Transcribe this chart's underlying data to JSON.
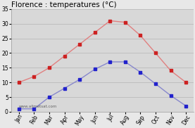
{
  "title": "Florence : temperatures (°C)",
  "months": [
    "Jan",
    "Feb",
    "Mar",
    "Apr",
    "May",
    "Jun",
    "Jul",
    "Aug",
    "Sep",
    "Oct",
    "Nov",
    "Dec"
  ],
  "max_temps": [
    10,
    12,
    15,
    19,
    23,
    27,
    31,
    30.5,
    26,
    20,
    14,
    10
  ],
  "min_temps": [
    1,
    1,
    5,
    8,
    11,
    14.5,
    17,
    17,
    13.5,
    9.5,
    5.5,
    2
  ],
  "max_line_color": "#e08080",
  "max_marker_color": "#cc2222",
  "min_line_color": "#8888cc",
  "min_marker_color": "#2222cc",
  "ylim": [
    0,
    35
  ],
  "yticks": [
    0,
    5,
    10,
    15,
    20,
    25,
    30,
    35
  ],
  "bg_color": "#e8e8e8",
  "plot_bg_color": "#d8d8d8",
  "watermark": "www.allmetsat.com",
  "title_fontsize": 7.5,
  "tick_fontsize": 5.5,
  "grid_color": "#bbbbbb"
}
